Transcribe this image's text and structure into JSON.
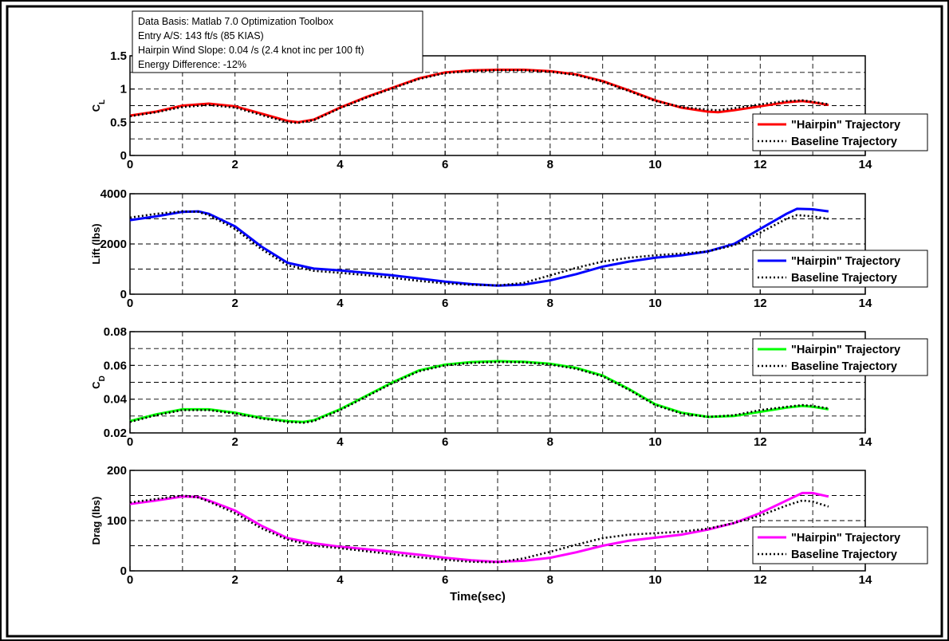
{
  "annotation": {
    "lines": [
      "Data Basis: Matlab 7.0 Optimization Toolbox",
      "Entry A/S: 143 ft/s (85 KIAS)",
      "Hairpin Wind Slope: 0.04 /s (2.4 knot inc per 100 ft)",
      "Energy Difference: -12%"
    ]
  },
  "chart_data": [
    {
      "type": "line",
      "title": "",
      "xlabel": "",
      "ylabel": "C_L",
      "ylabel_main": "C",
      "ylabel_sub": "L",
      "xlim": [
        0,
        14
      ],
      "ylim": [
        0,
        1.5
      ],
      "xticks": [
        "0",
        "2",
        "4",
        "6",
        "8",
        "10",
        "12",
        "14"
      ],
      "yticks": [
        "0",
        "0.5",
        "1",
        "1.5"
      ],
      "grid": true,
      "legend_position": "bottom-right",
      "hairpin_color": "#ff0000",
      "series": [
        {
          "name": "\"Hairpin\" Trajectory",
          "style": "solid",
          "x": [
            0,
            0.5,
            1,
            1.5,
            2,
            2.5,
            3,
            3.2,
            3.5,
            4,
            4.5,
            5,
            5.5,
            6,
            6.5,
            7,
            7.5,
            8,
            8.5,
            9,
            9.5,
            10,
            10.5,
            11,
            11.2,
            11.5,
            12,
            12.5,
            12.8,
            13,
            13.3
          ],
          "y": [
            0.6,
            0.66,
            0.75,
            0.78,
            0.74,
            0.63,
            0.52,
            0.5,
            0.54,
            0.72,
            0.88,
            1.02,
            1.16,
            1.25,
            1.28,
            1.29,
            1.29,
            1.27,
            1.22,
            1.12,
            0.98,
            0.83,
            0.72,
            0.66,
            0.65,
            0.68,
            0.74,
            0.8,
            0.82,
            0.8,
            0.76
          ]
        },
        {
          "name": "Baseline Trajectory",
          "style": "dotted",
          "x": [
            0,
            0.5,
            1,
            1.5,
            2,
            2.5,
            3,
            3.2,
            3.5,
            4,
            4.5,
            5,
            5.5,
            6,
            6.5,
            7,
            7.5,
            8,
            8.5,
            9,
            9.5,
            10,
            10.5,
            11,
            11.2,
            11.5,
            12,
            12.5,
            12.8,
            13,
            13.3
          ],
          "y": [
            0.59,
            0.65,
            0.73,
            0.76,
            0.72,
            0.61,
            0.5,
            0.49,
            0.53,
            0.71,
            0.87,
            1.01,
            1.15,
            1.24,
            1.27,
            1.28,
            1.28,
            1.26,
            1.21,
            1.11,
            0.97,
            0.82,
            0.73,
            0.69,
            0.68,
            0.71,
            0.77,
            0.82,
            0.83,
            0.81,
            0.77
          ]
        }
      ]
    },
    {
      "type": "line",
      "title": "",
      "xlabel": "",
      "ylabel": "Lift (lbs)",
      "ylabel_main": "Lift (lbs)",
      "ylabel_sub": "",
      "xlim": [
        0,
        14
      ],
      "ylim": [
        0,
        4000
      ],
      "xticks": [
        "0",
        "2",
        "4",
        "6",
        "8",
        "10",
        "12",
        "14"
      ],
      "yticks": [
        "0",
        "2000",
        "4000"
      ],
      "grid": true,
      "legend_position": "bottom-right",
      "hairpin_color": "#0000ff",
      "series": [
        {
          "name": "\"Hairpin\" Trajectory",
          "style": "solid",
          "x": [
            0,
            0.5,
            1,
            1.3,
            1.5,
            2,
            2.5,
            3,
            3.5,
            4,
            4.5,
            5,
            5.5,
            6,
            6.5,
            7,
            7.5,
            8,
            8.5,
            9,
            9.5,
            10,
            10.5,
            11,
            11.5,
            12,
            12.5,
            12.7,
            13,
            13.3
          ],
          "y": [
            2950,
            3100,
            3280,
            3300,
            3200,
            2700,
            1900,
            1250,
            1020,
            950,
            850,
            750,
            630,
            500,
            400,
            340,
            380,
            550,
            800,
            1100,
            1300,
            1450,
            1550,
            1700,
            2000,
            2600,
            3200,
            3400,
            3380,
            3300
          ]
        },
        {
          "name": "Baseline Trajectory",
          "style": "dotted",
          "x": [
            0,
            0.5,
            1,
            1.3,
            1.5,
            2,
            2.5,
            3,
            3.5,
            4,
            4.5,
            5,
            5.5,
            6,
            6.5,
            7,
            7.5,
            8,
            8.5,
            9,
            9.5,
            10,
            10.5,
            11,
            11.5,
            12,
            12.5,
            12.7,
            13,
            13.3
          ],
          "y": [
            3050,
            3200,
            3300,
            3280,
            3150,
            2600,
            1800,
            1150,
            930,
            850,
            760,
            650,
            530,
            430,
            370,
            350,
            450,
            750,
            1050,
            1300,
            1450,
            1550,
            1620,
            1700,
            1950,
            2450,
            3000,
            3150,
            3100,
            3000
          ]
        }
      ]
    },
    {
      "type": "line",
      "title": "",
      "xlabel": "",
      "ylabel": "C_D",
      "ylabel_main": "C",
      "ylabel_sub": "D",
      "xlim": [
        0,
        14
      ],
      "ylim": [
        0.02,
        0.08
      ],
      "xticks": [
        "0",
        "2",
        "4",
        "6",
        "8",
        "10",
        "12",
        "14"
      ],
      "yticks": [
        "0.02",
        "0.04",
        "0.06",
        "0.08"
      ],
      "grid": true,
      "legend_position": "top-right",
      "hairpin_color": "#00ff00",
      "series": [
        {
          "name": "\"Hairpin\" Trajectory",
          "style": "solid",
          "x": [
            0,
            0.5,
            1,
            1.5,
            2,
            2.5,
            3,
            3.3,
            3.5,
            4,
            4.5,
            5,
            5.5,
            6,
            6.5,
            7,
            7.5,
            8,
            8.5,
            9,
            9.5,
            10,
            10.5,
            11,
            11.5,
            12,
            12.5,
            12.8,
            13,
            13.3
          ],
          "y": [
            0.027,
            0.031,
            0.034,
            0.034,
            0.032,
            0.029,
            0.027,
            0.0265,
            0.0275,
            0.034,
            0.042,
            0.05,
            0.057,
            0.0605,
            0.062,
            0.0625,
            0.0622,
            0.061,
            0.0585,
            0.054,
            0.046,
            0.037,
            0.032,
            0.0295,
            0.03,
            0.0325,
            0.035,
            0.036,
            0.0355,
            0.034
          ]
        },
        {
          "name": "Baseline Trajectory",
          "style": "dotted",
          "x": [
            0,
            0.5,
            1,
            1.5,
            2,
            2.5,
            3,
            3.3,
            3.5,
            4,
            4.5,
            5,
            5.5,
            6,
            6.5,
            7,
            7.5,
            8,
            8.5,
            9,
            9.5,
            10,
            10.5,
            11,
            11.5,
            12,
            12.5,
            12.8,
            13,
            13.3
          ],
          "y": [
            0.0265,
            0.0305,
            0.0335,
            0.0335,
            0.0315,
            0.0285,
            0.0265,
            0.026,
            0.027,
            0.0335,
            0.0415,
            0.0495,
            0.0565,
            0.06,
            0.0615,
            0.062,
            0.0618,
            0.0605,
            0.058,
            0.0535,
            0.0455,
            0.0365,
            0.0315,
            0.0295,
            0.0305,
            0.0335,
            0.0355,
            0.0365,
            0.036,
            0.0345
          ]
        }
      ]
    },
    {
      "type": "line",
      "title": "",
      "xlabel": "Time(sec)",
      "ylabel": "Drag (lbs)",
      "ylabel_main": "Drag (lbs)",
      "ylabel_sub": "",
      "xlim": [
        0,
        14
      ],
      "ylim": [
        0,
        200
      ],
      "xticks": [
        "0",
        "2",
        "4",
        "6",
        "8",
        "10",
        "12",
        "14"
      ],
      "yticks": [
        "0",
        "100",
        "200"
      ],
      "grid": true,
      "legend_position": "bottom-right",
      "hairpin_color": "#ff00ff",
      "series": [
        {
          "name": "\"Hairpin\" Trajectory",
          "style": "solid",
          "x": [
            0,
            0.5,
            1,
            1.3,
            1.5,
            2,
            2.5,
            3,
            3.5,
            4,
            4.5,
            5,
            5.5,
            6,
            6.5,
            7,
            7.5,
            8,
            8.5,
            9,
            9.5,
            10,
            10.5,
            11,
            11.5,
            12,
            12.5,
            12.8,
            13,
            13.3
          ],
          "y": [
            133,
            140,
            148,
            147,
            140,
            120,
            90,
            65,
            55,
            48,
            43,
            38,
            32,
            26,
            21,
            18,
            20,
            26,
            37,
            50,
            60,
            66,
            72,
            82,
            95,
            115,
            140,
            155,
            155,
            148
          ]
        },
        {
          "name": "Baseline Trajectory",
          "style": "dotted",
          "x": [
            0,
            0.5,
            1,
            1.3,
            1.5,
            2,
            2.5,
            3,
            3.5,
            4,
            4.5,
            5,
            5.5,
            6,
            6.5,
            7,
            7.5,
            8,
            8.5,
            9,
            9.5,
            10,
            10.5,
            11,
            11.5,
            12,
            12.5,
            12.8,
            13,
            13.3
          ],
          "y": [
            136,
            143,
            150,
            146,
            138,
            115,
            85,
            62,
            50,
            45,
            39,
            33,
            27,
            22,
            18,
            17,
            25,
            38,
            52,
            65,
            72,
            75,
            78,
            84,
            95,
            110,
            130,
            140,
            138,
            128
          ]
        }
      ]
    }
  ]
}
